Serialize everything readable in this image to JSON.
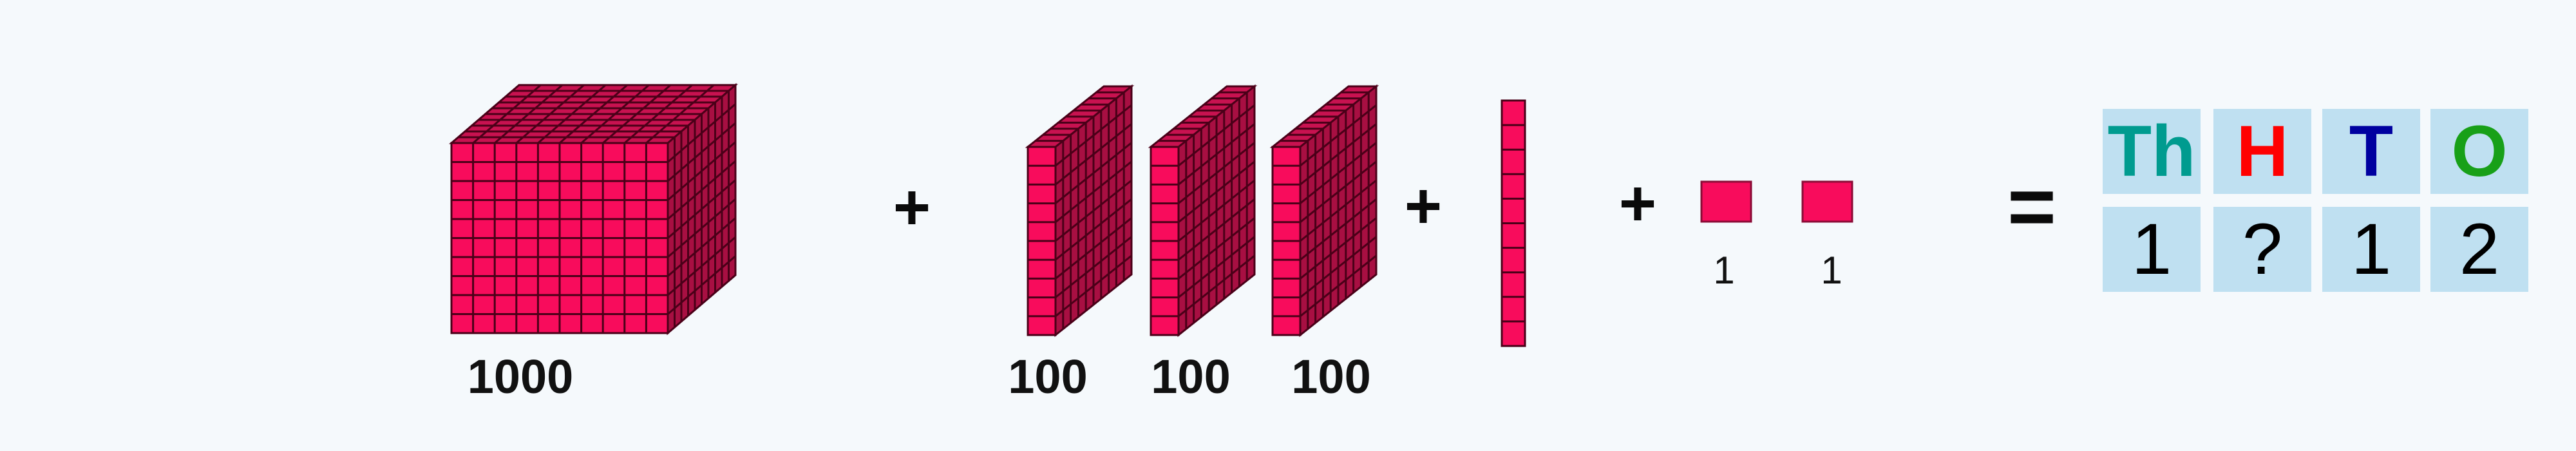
{
  "blocks": {
    "thousands": {
      "label": "1000",
      "count": 1
    },
    "hundreds": {
      "labels": [
        "100",
        "100",
        "100"
      ],
      "count": 3
    },
    "tens": {
      "count": 1
    },
    "ones": {
      "labels": [
        "1",
        "1"
      ],
      "count": 2
    }
  },
  "operators": {
    "plus": "+",
    "equals": "="
  },
  "place_value_table": {
    "headers": [
      {
        "text": "Th",
        "color": "#009b8f"
      },
      {
        "text": "H",
        "color": "#ff0000"
      },
      {
        "text": "T",
        "color": "#0000a0"
      },
      {
        "text": "O",
        "color": "#18a018"
      }
    ],
    "values": [
      "1",
      "?",
      "1",
      "2"
    ]
  },
  "colors": {
    "block_front": "#f80c5c",
    "block_top": "#c81250",
    "block_side": "#a80f42",
    "grid_line": "#4a0018",
    "background": "#f5f9fc",
    "cell_background": "#bfe0f1"
  }
}
